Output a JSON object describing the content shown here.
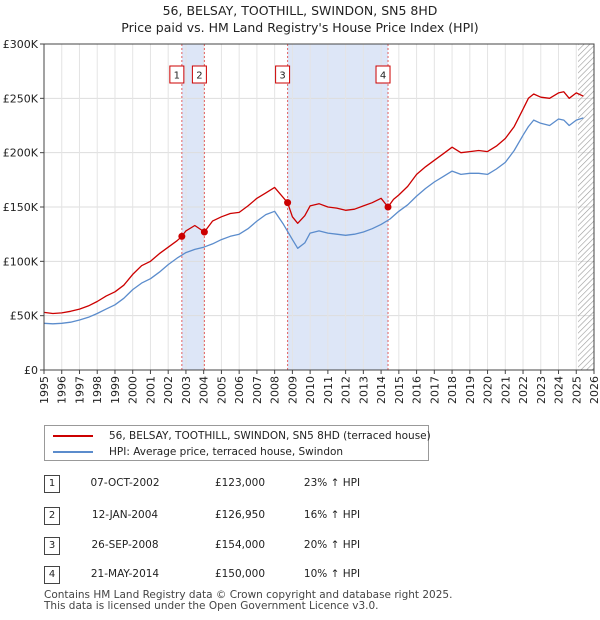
{
  "chart_data": {
    "type": "line",
    "title": "56, BELSAY, TOOTHILL, SWINDON, SN5 8HD",
    "subtitle": "Price paid vs. HM Land Registry's House Price Index (HPI)",
    "xlabel": "",
    "ylabel": "",
    "xlim": [
      1995,
      2026
    ],
    "ylim": [
      0,
      300000
    ],
    "ytick_values": [
      0,
      50000,
      100000,
      150000,
      200000,
      250000,
      300000
    ],
    "ytick_labels": [
      "£0",
      "£50K",
      "£100K",
      "£150K",
      "£200K",
      "£250K",
      "£300K"
    ],
    "xtick_values": [
      1995,
      1996,
      1997,
      1998,
      1999,
      2000,
      2001,
      2002,
      2003,
      2004,
      2005,
      2006,
      2007,
      2008,
      2009,
      2010,
      2011,
      2012,
      2013,
      2014,
      2015,
      2016,
      2017,
      2018,
      2019,
      2020,
      2021,
      2022,
      2023,
      2024,
      2025,
      2026
    ],
    "xtick_labels": [
      "1995",
      "1996",
      "1997",
      "1998",
      "1999",
      "2000",
      "2001",
      "2002",
      "2003",
      "2004",
      "2005",
      "2006",
      "2007",
      "2008",
      "2009",
      "2010",
      "2011",
      "2012",
      "2013",
      "2014",
      "2015",
      "2016",
      "2017",
      "2018",
      "2019",
      "2020",
      "2021",
      "2022",
      "2023",
      "2024",
      "2025",
      "2026"
    ],
    "grid": true,
    "colors": {
      "property": "#cc0000",
      "hpi": "#5b8ccc",
      "shade": "#dde6f7",
      "marker_line": "#e06060",
      "projection_hatch": "#888888"
    },
    "shaded_ranges": [
      [
        2002.77,
        2004.04
      ],
      [
        2008.73,
        2014.39
      ]
    ],
    "projection_start": 2025.1,
    "series": [
      {
        "name": "56, BELSAY, TOOTHILL, SWINDON, SN5 8HD (terraced house)",
        "color": "#cc0000",
        "x": [
          1995.0,
          1995.5,
          1996.0,
          1996.5,
          1997.0,
          1997.5,
          1998.0,
          1998.5,
          1999.0,
          1999.5,
          2000.0,
          2000.5,
          2001.0,
          2001.5,
          2002.0,
          2002.5,
          2002.77,
          2003.0,
          2003.5,
          2004.04,
          2004.5,
          2005.0,
          2005.5,
          2006.0,
          2006.5,
          2007.0,
          2007.5,
          2008.0,
          2008.73,
          2009.0,
          2009.3,
          2009.7,
          2010.0,
          2010.5,
          2011.0,
          2011.5,
          2012.0,
          2012.5,
          2013.0,
          2013.5,
          2014.0,
          2014.39,
          2014.7,
          2015.0,
          2015.5,
          2016.0,
          2016.5,
          2017.0,
          2017.5,
          2018.0,
          2018.5,
          2019.0,
          2019.5,
          2020.0,
          2020.5,
          2021.0,
          2021.5,
          2022.0,
          2022.3,
          2022.6,
          2023.0,
          2023.5,
          2024.0,
          2024.3,
          2024.6,
          2025.0,
          2025.4
        ],
        "values": [
          53000,
          52000,
          52500,
          54000,
          56000,
          59000,
          63000,
          68000,
          72000,
          78000,
          88000,
          96000,
          100000,
          107000,
          113000,
          119000,
          123000,
          128000,
          133000,
          126950,
          137000,
          141000,
          144000,
          145000,
          151000,
          158000,
          163000,
          168000,
          154000,
          141000,
          135000,
          142000,
          151000,
          153000,
          150000,
          149000,
          147000,
          148000,
          151000,
          154000,
          158000,
          150000,
          157000,
          161000,
          169000,
          180000,
          187000,
          193000,
          199000,
          205000,
          200000,
          201000,
          202000,
          201000,
          206000,
          213000,
          224000,
          240000,
          250000,
          254000,
          251000,
          250000,
          255000,
          256000,
          250000,
          255000,
          252000
        ]
      },
      {
        "name": "HPI: Average price, terraced house, Swindon",
        "color": "#5b8ccc",
        "x": [
          1995.0,
          1995.5,
          1996.0,
          1996.5,
          1997.0,
          1997.5,
          1998.0,
          1998.5,
          1999.0,
          1999.5,
          2000.0,
          2000.5,
          2001.0,
          2001.5,
          2002.0,
          2002.5,
          2003.0,
          2003.5,
          2004.0,
          2004.5,
          2005.0,
          2005.5,
          2006.0,
          2006.5,
          2007.0,
          2007.5,
          2008.0,
          2008.5,
          2009.0,
          2009.3,
          2009.7,
          2010.0,
          2010.5,
          2011.0,
          2011.5,
          2012.0,
          2012.5,
          2013.0,
          2013.5,
          2014.0,
          2014.5,
          2015.0,
          2015.5,
          2016.0,
          2016.5,
          2017.0,
          2017.5,
          2018.0,
          2018.5,
          2019.0,
          2019.5,
          2020.0,
          2020.5,
          2021.0,
          2021.5,
          2022.0,
          2022.3,
          2022.6,
          2023.0,
          2023.5,
          2024.0,
          2024.3,
          2024.6,
          2025.0,
          2025.4
        ],
        "values": [
          43000,
          42500,
          43000,
          44000,
          46000,
          48500,
          52000,
          56000,
          60000,
          66000,
          74000,
          80000,
          84000,
          90000,
          97000,
          103000,
          108000,
          111000,
          113000,
          116000,
          120000,
          123000,
          125000,
          130000,
          137000,
          143000,
          146000,
          134000,
          120000,
          112000,
          117000,
          126000,
          128000,
          126000,
          125000,
          124000,
          125000,
          127000,
          130000,
          134000,
          139000,
          146000,
          152000,
          160000,
          167000,
          173000,
          178000,
          183000,
          180000,
          181000,
          181000,
          180000,
          185000,
          191000,
          202000,
          216000,
          224000,
          230000,
          227000,
          225000,
          231000,
          230000,
          225000,
          230000,
          232000
        ]
      }
    ],
    "transactions": [
      {
        "num": "1",
        "x": 2002.77,
        "value": 123000
      },
      {
        "num": "2",
        "x": 2004.04,
        "value": 126950
      },
      {
        "num": "3",
        "x": 2008.73,
        "value": 154000
      },
      {
        "num": "4",
        "x": 2014.39,
        "value": 150000
      }
    ]
  },
  "legend": {
    "property_label": "56, BELSAY, TOOTHILL, SWINDON, SN5 8HD (terraced house)",
    "hpi_label": "HPI: Average price, terraced house, Swindon"
  },
  "table": [
    {
      "num": "1",
      "date": "07-OCT-2002",
      "price": "£123,000",
      "hpi": "23% ↑ HPI"
    },
    {
      "num": "2",
      "date": "12-JAN-2004",
      "price": "£126,950",
      "hpi": "16% ↑ HPI"
    },
    {
      "num": "3",
      "date": "26-SEP-2008",
      "price": "£154,000",
      "hpi": "20% ↑ HPI"
    },
    {
      "num": "4",
      "date": "21-MAY-2014",
      "price": "£150,000",
      "hpi": "10% ↑ HPI"
    }
  ],
  "footer": {
    "line1": "Contains HM Land Registry data © Crown copyright and database right 2025.",
    "line2": "This data is licensed under the Open Government Licence v3.0."
  }
}
